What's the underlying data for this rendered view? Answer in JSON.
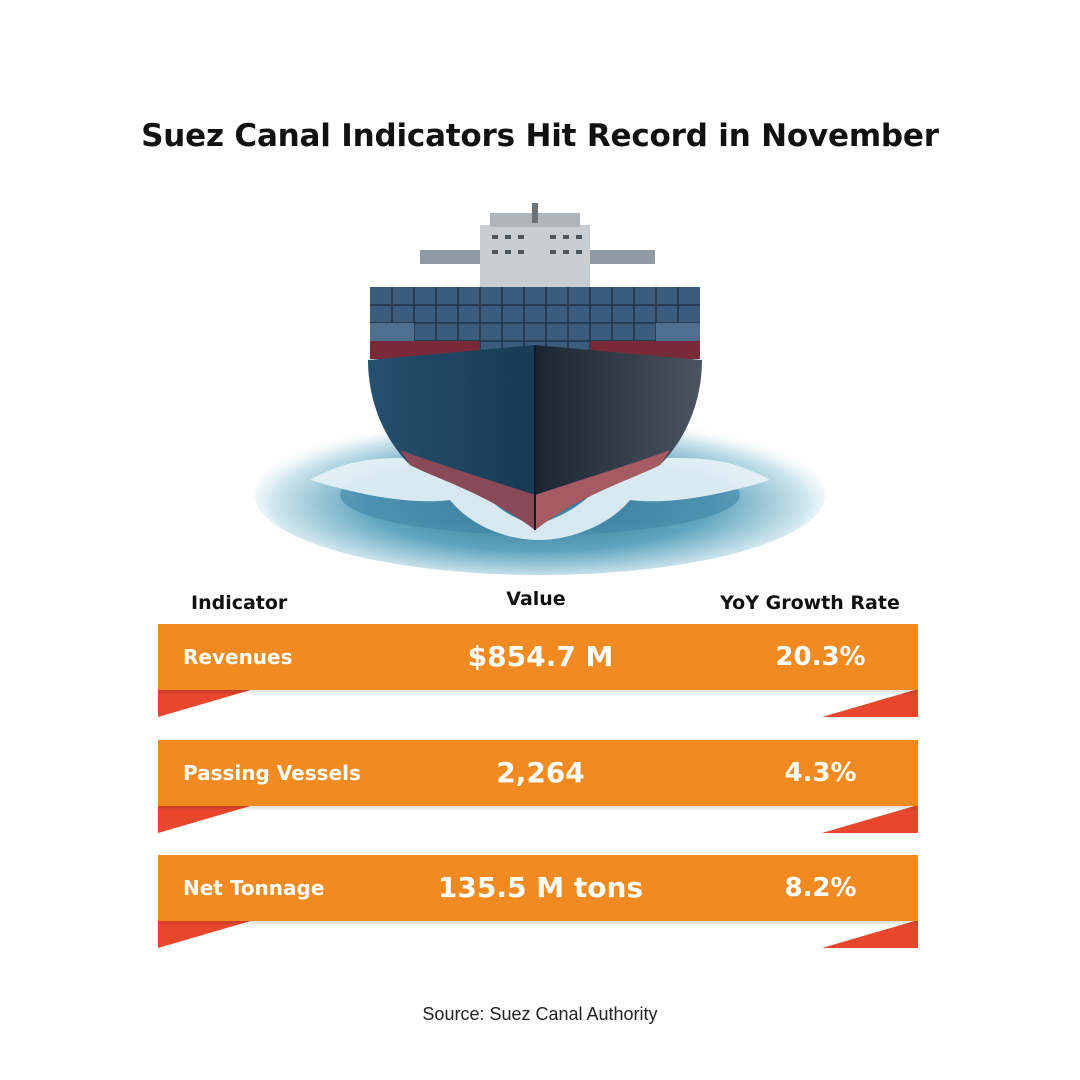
{
  "chart_data": {
    "type": "table",
    "title": "Suez Canal Indicators Hit Record in November",
    "columns": [
      "Indicator",
      "Value",
      "YoY Growth Rate"
    ],
    "rows": [
      {
        "indicator": "Revenues",
        "value": "$854.7 M",
        "growth": "20.3%"
      },
      {
        "indicator": "Passing Vessels",
        "value": "2,264",
        "growth": "4.3%"
      },
      {
        "indicator": "Net Tonnage",
        "value": "135.5 M tons",
        "growth": "8.2%"
      }
    ],
    "source": "Source: Suez Canal Authority"
  },
  "colors": {
    "band": "#f28a22",
    "flap": "#e8472e",
    "text_dark": "#111111"
  },
  "image": {
    "subject": "container-ship-icon"
  }
}
